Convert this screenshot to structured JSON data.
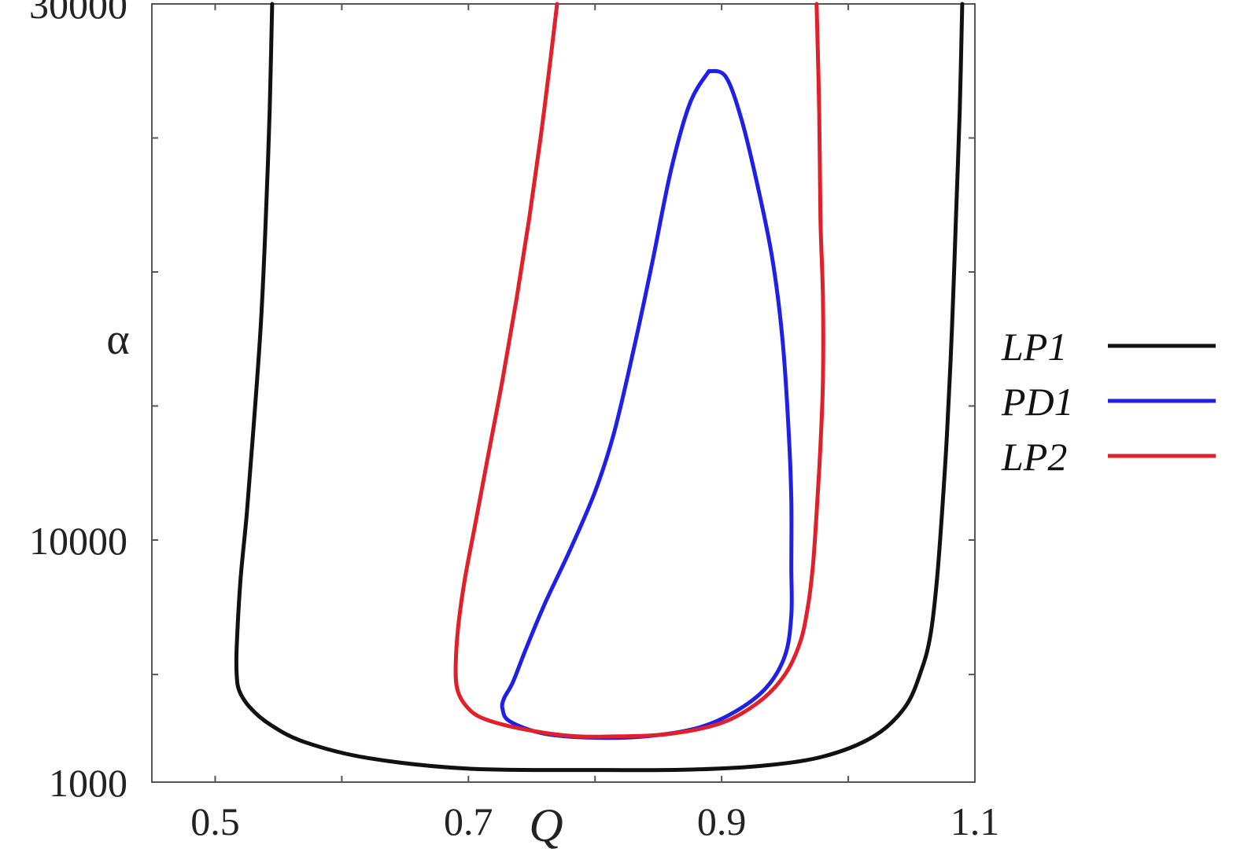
{
  "chart_data": {
    "type": "line",
    "title": "",
    "xlabel": "Q",
    "ylabel": "α",
    "xlim": [
      0.45,
      1.1
    ],
    "ylim": [
      1000,
      30000
    ],
    "grid": false,
    "legend_position": "right",
    "x_ticks": [
      "0.5",
      "0.7",
      "0.9",
      "1.1"
    ],
    "y_ticks": [
      "30000",
      "10000",
      "1000"
    ],
    "legend": [
      {
        "name": "LP1",
        "color": "#111111"
      },
      {
        "name": "PD1",
        "color": "#1f1fe6"
      },
      {
        "name": "LP2",
        "color": "#e0202a"
      }
    ],
    "series": [
      {
        "name": "LP1",
        "color": "#111111",
        "points": [
          [
            0.545,
            30000
          ],
          [
            0.543,
            26000
          ],
          [
            0.54,
            22000
          ],
          [
            0.536,
            18000
          ],
          [
            0.53,
            14000
          ],
          [
            0.525,
            11000
          ],
          [
            0.52,
            8500
          ],
          [
            0.517,
            6000
          ],
          [
            0.517,
            5000
          ],
          [
            0.519,
            4400
          ],
          [
            0.527,
            3800
          ],
          [
            0.543,
            3150
          ],
          [
            0.57,
            2500
          ],
          [
            0.62,
            1900
          ],
          [
            0.7,
            1500
          ],
          [
            0.8,
            1450
          ],
          [
            0.87,
            1460
          ],
          [
            0.93,
            1600
          ],
          [
            0.98,
            1950
          ],
          [
            1.02,
            2700
          ],
          [
            1.045,
            3800
          ],
          [
            1.058,
            5200
          ],
          [
            1.065,
            6500
          ],
          [
            1.07,
            8500
          ],
          [
            1.074,
            11000
          ],
          [
            1.078,
            14000
          ],
          [
            1.082,
            18000
          ],
          [
            1.085,
            22000
          ],
          [
            1.088,
            26000
          ],
          [
            1.09,
            30000
          ]
        ]
      },
      {
        "name": "PD1",
        "color": "#1f1fe6",
        "points": [
          [
            0.89,
            27500
          ],
          [
            0.875,
            26300
          ],
          [
            0.86,
            23800
          ],
          [
            0.845,
            20300
          ],
          [
            0.83,
            17000
          ],
          [
            0.815,
            14000
          ],
          [
            0.8,
            11800
          ],
          [
            0.78,
            9600
          ],
          [
            0.76,
            7600
          ],
          [
            0.745,
            5900
          ],
          [
            0.735,
            4700
          ],
          [
            0.728,
            4100
          ],
          [
            0.727,
            3700
          ],
          [
            0.733,
            3250
          ],
          [
            0.76,
            2800
          ],
          [
            0.8,
            2650
          ],
          [
            0.84,
            2700
          ],
          [
            0.88,
            3000
          ],
          [
            0.91,
            3600
          ],
          [
            0.935,
            4500
          ],
          [
            0.95,
            5700
          ],
          [
            0.955,
            7200
          ],
          [
            0.955,
            9000
          ],
          [
            0.955,
            11500
          ],
          [
            0.953,
            14000
          ],
          [
            0.948,
            17500
          ],
          [
            0.94,
            20500
          ],
          [
            0.928,
            23300
          ],
          [
            0.915,
            25800
          ],
          [
            0.903,
            27300
          ],
          [
            0.89,
            27500
          ]
        ]
      },
      {
        "name": "LP2",
        "color": "#e0202a",
        "points": [
          [
            0.77,
            30000
          ],
          [
            0.765,
            28000
          ],
          [
            0.757,
            25000
          ],
          [
            0.748,
            22000
          ],
          [
            0.738,
            19000
          ],
          [
            0.727,
            16000
          ],
          [
            0.715,
            13000
          ],
          [
            0.705,
            10500
          ],
          [
            0.697,
            8500
          ],
          [
            0.692,
            6800
          ],
          [
            0.69,
            5400
          ],
          [
            0.691,
            4500
          ],
          [
            0.697,
            3900
          ],
          [
            0.71,
            3400
          ],
          [
            0.74,
            3000
          ],
          [
            0.78,
            2720
          ],
          [
            0.82,
            2700
          ],
          [
            0.86,
            2800
          ],
          [
            0.9,
            3200
          ],
          [
            0.93,
            4000
          ],
          [
            0.95,
            5000
          ],
          [
            0.962,
            6200
          ],
          [
            0.968,
            7500
          ],
          [
            0.972,
            9000
          ],
          [
            0.975,
            11000
          ],
          [
            0.978,
            13500
          ],
          [
            0.98,
            16000
          ],
          [
            0.98,
            19000
          ],
          [
            0.978,
            22000
          ],
          [
            0.977,
            26000
          ],
          [
            0.975,
            30000
          ]
        ]
      }
    ]
  }
}
